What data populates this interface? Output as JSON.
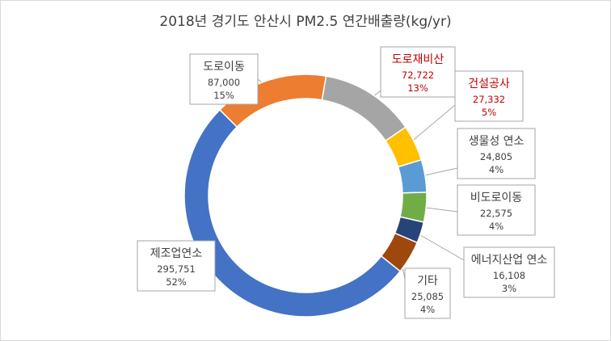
{
  "chart_data": {
    "type": "pie",
    "variant": "doughnut",
    "title": "2018년 경기도 안산시 PM2.5 연간배출량(kg/yr)",
    "series": [
      {
        "name": "도로이동",
        "value": 87000,
        "percent": "15%",
        "value_label": "87,000",
        "color": "#ED7D31",
        "label_color": "#404040"
      },
      {
        "name": "도로재비산",
        "value": 72722,
        "percent": "13%",
        "value_label": "72,722",
        "color": "#A5A5A5",
        "label_color": "#C00000"
      },
      {
        "name": "건설공사",
        "value": 27332,
        "percent": "5%",
        "value_label": "27,332",
        "color": "#FFC000",
        "label_color": "#C00000"
      },
      {
        "name": "생물성 연소",
        "value": 24805,
        "percent": "4%",
        "value_label": "24,805",
        "color": "#5B9BD5",
        "label_color": "#404040"
      },
      {
        "name": "비도로이동",
        "value": 22575,
        "percent": "4%",
        "value_label": "22,575",
        "color": "#70AD47",
        "label_color": "#404040"
      },
      {
        "name": "에너지산업 연소",
        "value": 16108,
        "percent": "3%",
        "value_label": "16,108",
        "color": "#264478",
        "label_color": "#404040"
      },
      {
        "name": "기타",
        "value": 25085,
        "percent": "4%",
        "value_label": "25,085",
        "color": "#9E480E",
        "label_color": "#404040"
      },
      {
        "name": "제조업연소",
        "value": 295751,
        "percent": "52%",
        "value_label": "295,751",
        "color": "#4472C4",
        "label_color": "#404040"
      }
    ]
  }
}
